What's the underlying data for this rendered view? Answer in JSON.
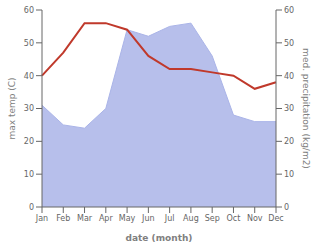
{
  "chart_data": {
    "type": "line",
    "xlabel": "date (month)",
    "ylabel": "max temp (C)",
    "y2label": "med. precipitation (kg/m2)",
    "categories": [
      "Jan",
      "Feb",
      "Mar",
      "Apr",
      "May",
      "Jun",
      "Jul",
      "Aug",
      "Sep",
      "Oct",
      "Nov",
      "Dec"
    ],
    "series": [
      {
        "type": "area",
        "axis": "y2",
        "color": "#aab4e8",
        "values": [
          31,
          25,
          24,
          30,
          54,
          52,
          55,
          56,
          46,
          28,
          26,
          26
        ]
      },
      {
        "type": "line",
        "color": "#c0392b",
        "values": [
          40,
          47,
          56,
          56,
          54,
          46,
          42,
          42,
          41,
          40,
          36,
          38
        ]
      }
    ],
    "ylim": [
      0,
      60
    ],
    "yticks": [
      0,
      10,
      20,
      30,
      40,
      50,
      60
    ],
    "y2lim": [
      0,
      60
    ],
    "y2ticks": [
      0,
      10,
      20,
      30,
      40,
      50,
      60
    ],
    "grid": false
  }
}
